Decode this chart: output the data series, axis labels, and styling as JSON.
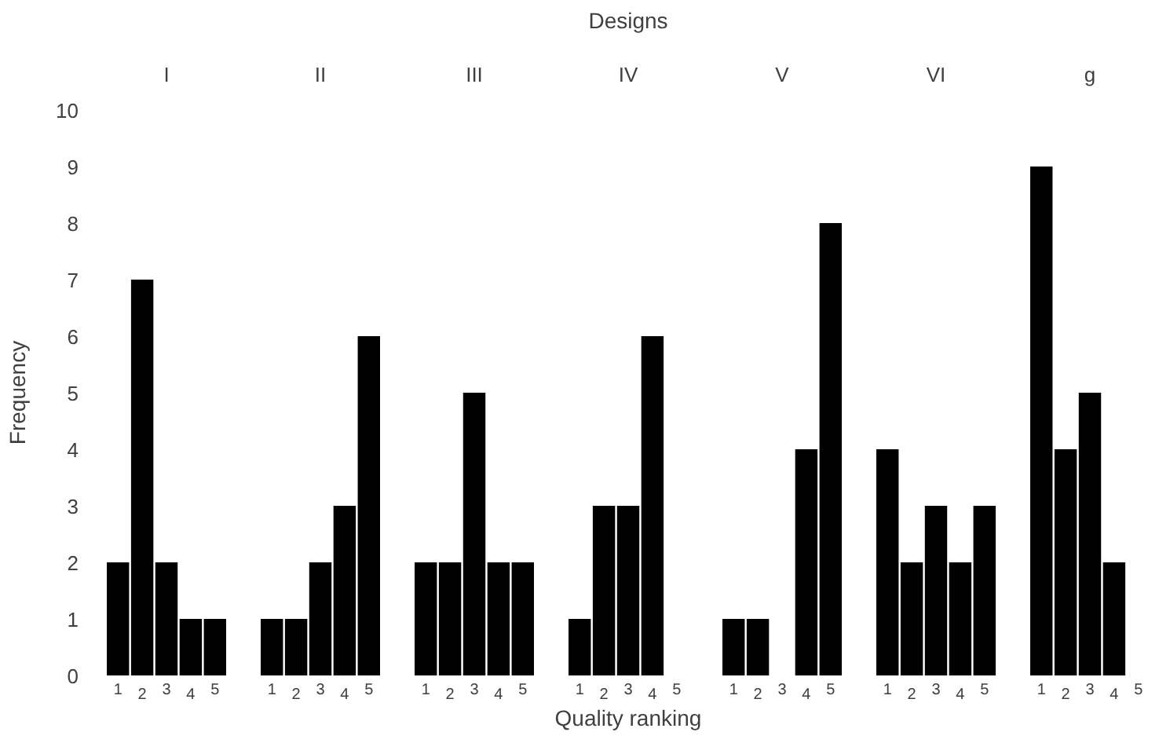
{
  "chart_data": [
    {
      "type": "bar",
      "title": "I",
      "ylabel": "Frequency",
      "categories": [
        "1",
        "2",
        "3",
        "4",
        "5"
      ],
      "values": [
        2,
        7,
        2,
        1,
        1
      ],
      "color": "#000000",
      "ylim": [
        0,
        10
      ],
      "yticks": [
        0,
        1,
        2,
        3,
        4,
        5,
        6,
        7,
        8,
        9,
        10
      ],
      "grid": false
    },
    {
      "type": "bar",
      "title": "II",
      "categories": [
        "1",
        "2",
        "3",
        "4",
        "5"
      ],
      "values": [
        1,
        1,
        2,
        3,
        6
      ],
      "color": "#000000",
      "ylim": [
        0,
        10
      ],
      "tick_labels": "x"
    },
    {
      "type": "bar",
      "title": "III",
      "categories": [
        "1",
        "2",
        "3",
        "4",
        "5"
      ],
      "values": [
        2,
        2,
        5,
        2,
        2
      ],
      "color": "#000000",
      "ylim": [
        0,
        10
      ],
      "tick_labels": "x"
    },
    {
      "type": "bar",
      "title": "IV",
      "xlabel": "Quality ranking",
      "annotations": [
        "Designs"
      ],
      "categories": [
        "1",
        "2",
        "3",
        "4",
        "5"
      ],
      "values": [
        1,
        3,
        3,
        6,
        0
      ],
      "color": "#000000",
      "ylim": [
        0,
        10
      ],
      "tick_labels": "x"
    },
    {
      "type": "bar",
      "title": "V",
      "categories": [
        "1",
        "2",
        "3",
        "4",
        "5"
      ],
      "values": [
        1,
        1,
        0,
        4,
        8
      ],
      "color": "#000000",
      "ylim": [
        0,
        10
      ],
      "tick_labels": "x"
    },
    {
      "type": "bar",
      "title": "VI",
      "categories": [
        "1",
        "2",
        "3",
        "4",
        "5"
      ],
      "values": [
        4,
        2,
        3,
        2,
        3
      ],
      "color": "#000000",
      "ylim": [
        0,
        10
      ],
      "tick_labels": "x"
    },
    {
      "type": "bar",
      "title": "g",
      "categories": [
        "1",
        "2",
        "3",
        "4",
        "5"
      ],
      "values": [
        9,
        4,
        5,
        2,
        0
      ],
      "color": "#000000",
      "ylim": [
        0,
        10
      ],
      "tick_labels": "x"
    }
  ]
}
